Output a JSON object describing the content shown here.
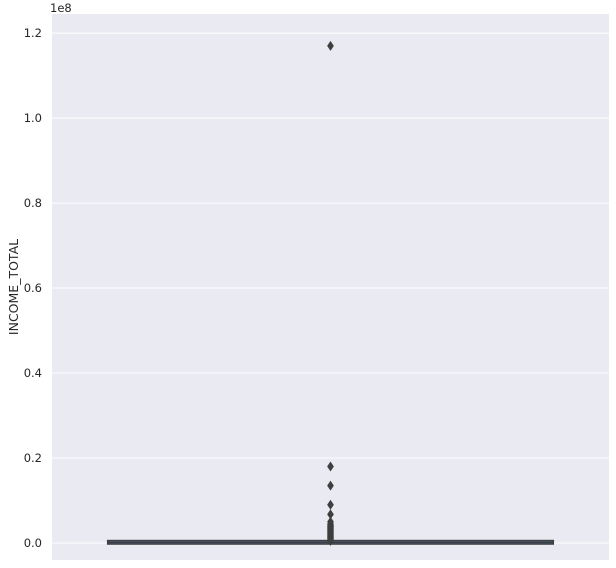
{
  "chart_data": {
    "type": "box",
    "title": "",
    "xlabel": "",
    "ylabel": "INCOME_TOTAL",
    "y_offset_label": "1e8",
    "ylim": [
      -0.04,
      1.245
    ],
    "yticks": [
      0.0,
      0.2,
      0.4,
      0.6,
      0.8,
      1.0,
      1.2
    ],
    "ytick_labels": [
      "0.0",
      "0.2",
      "0.4",
      "0.6",
      "0.8",
      "1.0",
      "1.2"
    ],
    "grid": true,
    "legend": "none",
    "box": {
      "q1": 0.001125,
      "median": 0.0015,
      "q3": 0.00225,
      "whisker_low": 0.0,
      "whisker_high": 0.00405,
      "outliers": [
        1.17,
        0.18,
        0.135,
        0.09,
        0.0675,
        0.05,
        0.045,
        0.042,
        0.04,
        0.038,
        0.036,
        0.034,
        0.032,
        0.03,
        0.028,
        0.026,
        0.024,
        0.022,
        0.02,
        0.018,
        0.016,
        0.014,
        0.012,
        0.01,
        0.008,
        0.006,
        0.005
      ]
    },
    "colors": {
      "background": "#eaeaf2",
      "grid": "#ffffff",
      "box_fill": "#4c72b0",
      "line": "#3f3f3f"
    }
  }
}
